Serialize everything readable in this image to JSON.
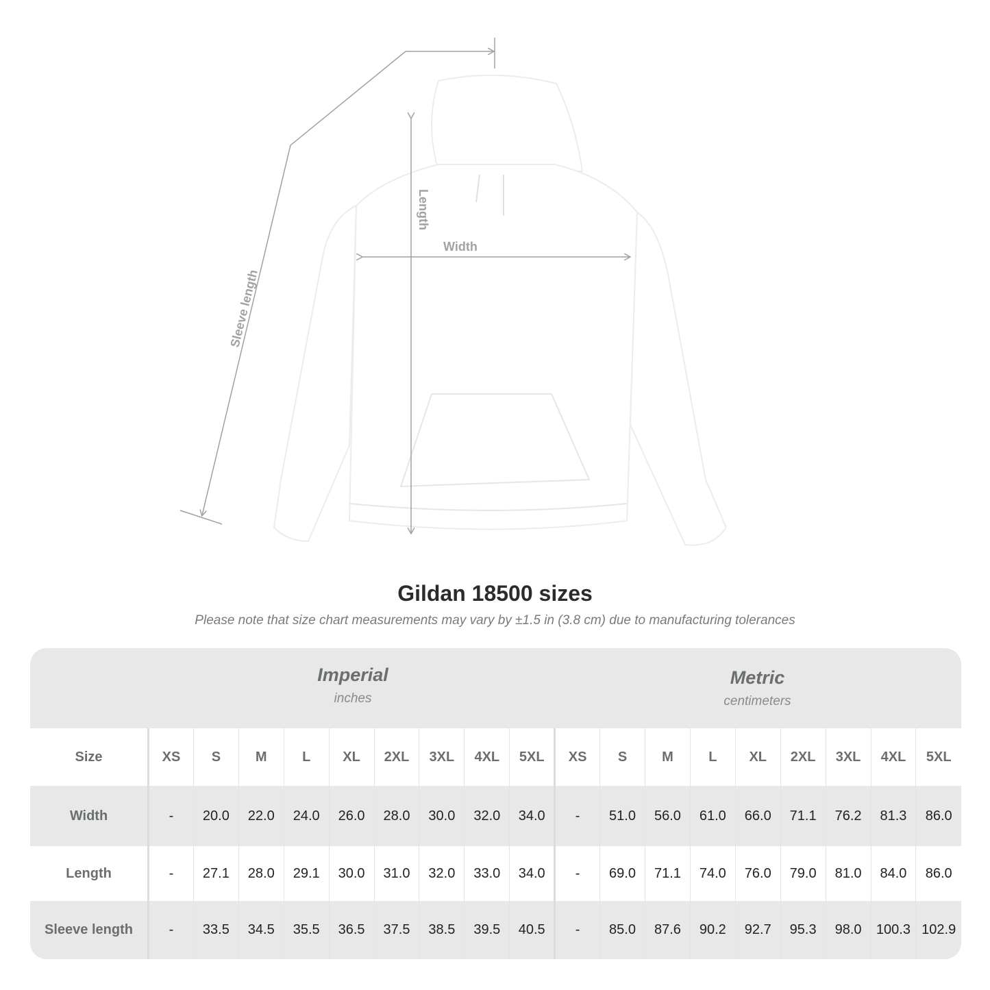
{
  "figure": {
    "measure_labels": {
      "sleeve": "Sleeve length",
      "length": "Length",
      "width": "Width"
    },
    "garment_color": "#ffffff",
    "line_color": "#a0a0a0"
  },
  "title": "Gildan 18500 sizes",
  "subtitle": "Please note that size chart measurements may vary by ±1.5 in (3.8 cm) due to manufacturing tolerances",
  "units": {
    "imperial": {
      "title": "Imperial",
      "sub": "inches"
    },
    "metric": {
      "title": "Metric",
      "sub": "centimeters"
    }
  },
  "table": {
    "size_label": "Size",
    "sizes": [
      "XS",
      "S",
      "M",
      "L",
      "XL",
      "2XL",
      "3XL",
      "4XL",
      "5XL"
    ],
    "rows": [
      {
        "label": "Width",
        "imperial": [
          "-",
          "20.0",
          "22.0",
          "24.0",
          "26.0",
          "28.0",
          "30.0",
          "32.0",
          "34.0"
        ],
        "metric": [
          "-",
          "51.0",
          "56.0",
          "61.0",
          "66.0",
          "71.1",
          "76.2",
          "81.3",
          "86.0"
        ]
      },
      {
        "label": "Length",
        "imperial": [
          "-",
          "27.1",
          "28.0",
          "29.1",
          "30.0",
          "31.0",
          "32.0",
          "33.0",
          "34.0"
        ],
        "metric": [
          "-",
          "69.0",
          "71.1",
          "74.0",
          "76.0",
          "79.0",
          "81.0",
          "84.0",
          "86.0"
        ]
      },
      {
        "label": "Sleeve length",
        "imperial": [
          "-",
          "33.5",
          "34.5",
          "35.5",
          "36.5",
          "37.5",
          "38.5",
          "39.5",
          "40.5"
        ],
        "metric": [
          "-",
          "85.0",
          "87.6",
          "90.2",
          "92.7",
          "95.3",
          "98.0",
          "100.3",
          "102.9"
        ]
      }
    ]
  }
}
